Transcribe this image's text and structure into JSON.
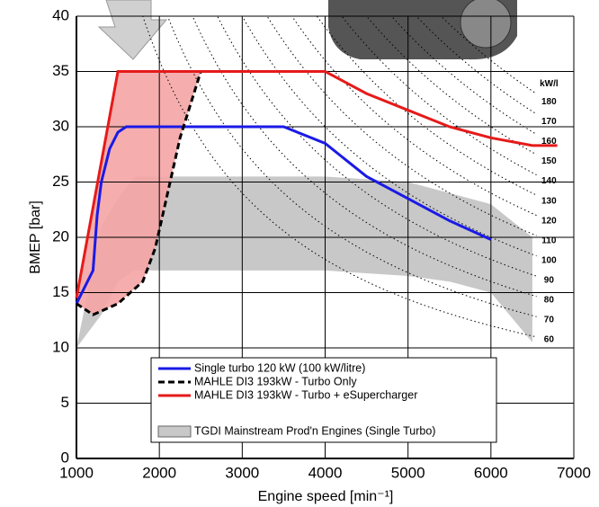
{
  "chart_data": {
    "type": "line",
    "xlabel": "Engine speed [min⁻¹]",
    "ylabel": "BMEP [bar]",
    "xlim": [
      1000,
      7000
    ],
    "ylim": [
      0,
      40
    ],
    "xticks": [
      1000,
      2000,
      3000,
      4000,
      5000,
      6000,
      7000
    ],
    "yticks": [
      0,
      5,
      10,
      15,
      20,
      25,
      30,
      35,
      40
    ],
    "grid": true,
    "fill_color": "#f4a4a4",
    "series": [
      {
        "name": "Single turbo 120 kW (100 kW/litre)",
        "color": "#1a1ae6",
        "style": "solid",
        "x": [
          1000,
          1100,
          1200,
          1250,
          1300,
          1400,
          1500,
          1600,
          3500,
          4000,
          4500,
          5000,
          5500,
          6000
        ],
        "values": [
          14,
          15.5,
          17,
          22,
          25,
          28,
          29.5,
          30,
          30,
          28.5,
          25.5,
          23.5,
          21.5,
          19.8
        ]
      },
      {
        "name": "MAHLE DI3 193kW - Turbo Only",
        "color": "#000000",
        "style": "dashed",
        "x": [
          1000,
          1200,
          1500,
          1800,
          1950,
          2100,
          2250,
          2500
        ],
        "values": [
          14,
          13,
          14,
          16,
          19,
          24,
          29,
          35
        ]
      },
      {
        "name": "MAHLE DI3 193kW - Turbo + eSupercharger",
        "color": "#e61a1a",
        "style": "solid",
        "x": [
          1000,
          1500,
          4000,
          4500,
          5000,
          5500,
          6000,
          6500,
          6800
        ],
        "values": [
          14.5,
          35,
          35,
          33,
          31.5,
          30,
          29,
          28.3,
          28.3
        ]
      }
    ],
    "band": {
      "name": "TGDI Mainstream Prod'n Engines (Single Turbo)",
      "color": "#c8c8c8",
      "x": [
        1000,
        1300,
        1500,
        1700,
        4000,
        5000,
        5500,
        6000,
        6500
      ],
      "upper": [
        10,
        21,
        23.5,
        25.5,
        25.5,
        25,
        24,
        23,
        20
      ],
      "lower": [
        10,
        13,
        16,
        17,
        17,
        16.5,
        16,
        15,
        10.5
      ]
    },
    "iso_power": {
      "unit_label": "kW/l",
      "values": [
        60,
        70,
        80,
        90,
        100,
        110,
        120,
        130,
        140,
        150,
        160,
        170,
        180
      ]
    }
  }
}
